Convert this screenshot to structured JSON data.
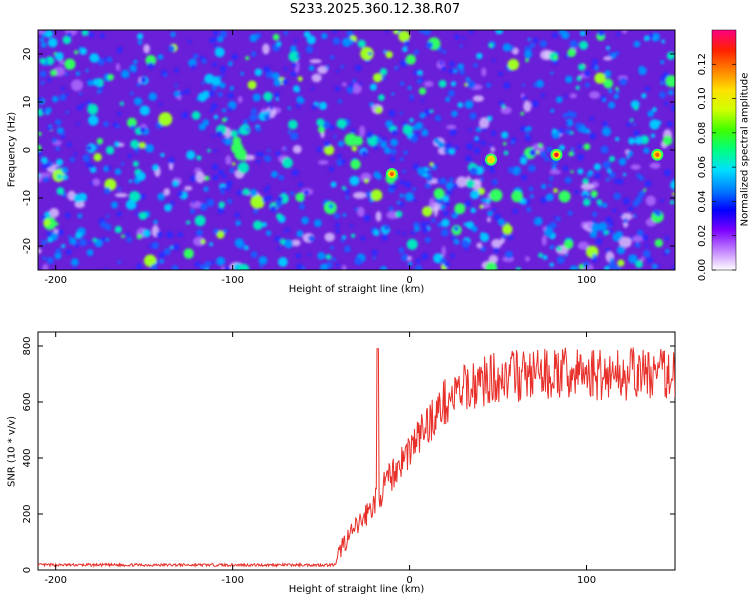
{
  "title": "S233.2025.360.12.38.R07",
  "chart_data": [
    {
      "type": "heatmap",
      "xlabel": "Height of straight line (km)",
      "ylabel": "Frequency (Hz)",
      "xlim": [
        -210,
        150
      ],
      "ylim": [
        -25,
        25
      ],
      "xticks": [
        -200,
        -100,
        0,
        100
      ],
      "yticks": [
        -20,
        -10,
        0,
        10,
        20
      ],
      "colorbar": {
        "label": "Normalized spectral amplitude",
        "range": [
          0,
          0.14
        ],
        "ticks": [
          "0.00",
          "0.02",
          "0.04",
          "0.06",
          "0.08",
          "0.10",
          "0.12"
        ],
        "colors": [
          "#ffffff",
          "#c080ff",
          "#7a00ff",
          "#0000ff",
          "#0080ff",
          "#00e0ff",
          "#00ff80",
          "#40ff00",
          "#d0ff00",
          "#ffe000",
          "#ff8000",
          "#ff2000",
          "#ff0080"
        ]
      },
      "background_color": "#6a1fd8",
      "hot_spots": [
        {
          "x": 83,
          "y": -1,
          "value": 0.13
        },
        {
          "x": 140,
          "y": -1,
          "value": 0.12
        },
        {
          "x": -10,
          "y": -5,
          "value": 0.12
        },
        {
          "x": 46,
          "y": -2,
          "value": 0.1
        }
      ]
    },
    {
      "type": "line",
      "xlabel": "Height of straight line (km)",
      "ylabel": "SNR (10 * v/v)",
      "xlim": [
        -210,
        150
      ],
      "ylim": [
        0,
        850
      ],
      "xticks": [
        -200,
        -100,
        0,
        100
      ],
      "yticks": [
        0,
        200,
        400,
        600,
        800
      ],
      "line_color": "#e8302a",
      "profile": [
        {
          "x": -210,
          "y": 18
        },
        {
          "x": -42,
          "y": 18
        },
        {
          "x": -38,
          "y": 90
        },
        {
          "x": -30,
          "y": 150
        },
        {
          "x": -20,
          "y": 240
        },
        {
          "x": -10,
          "y": 340
        },
        {
          "x": 0,
          "y": 430
        },
        {
          "x": 10,
          "y": 520
        },
        {
          "x": 20,
          "y": 600
        },
        {
          "x": 35,
          "y": 660
        },
        {
          "x": 50,
          "y": 690
        },
        {
          "x": 80,
          "y": 700
        },
        {
          "x": 150,
          "y": 700
        }
      ],
      "spike": {
        "x": -18,
        "y": 790
      }
    }
  ]
}
